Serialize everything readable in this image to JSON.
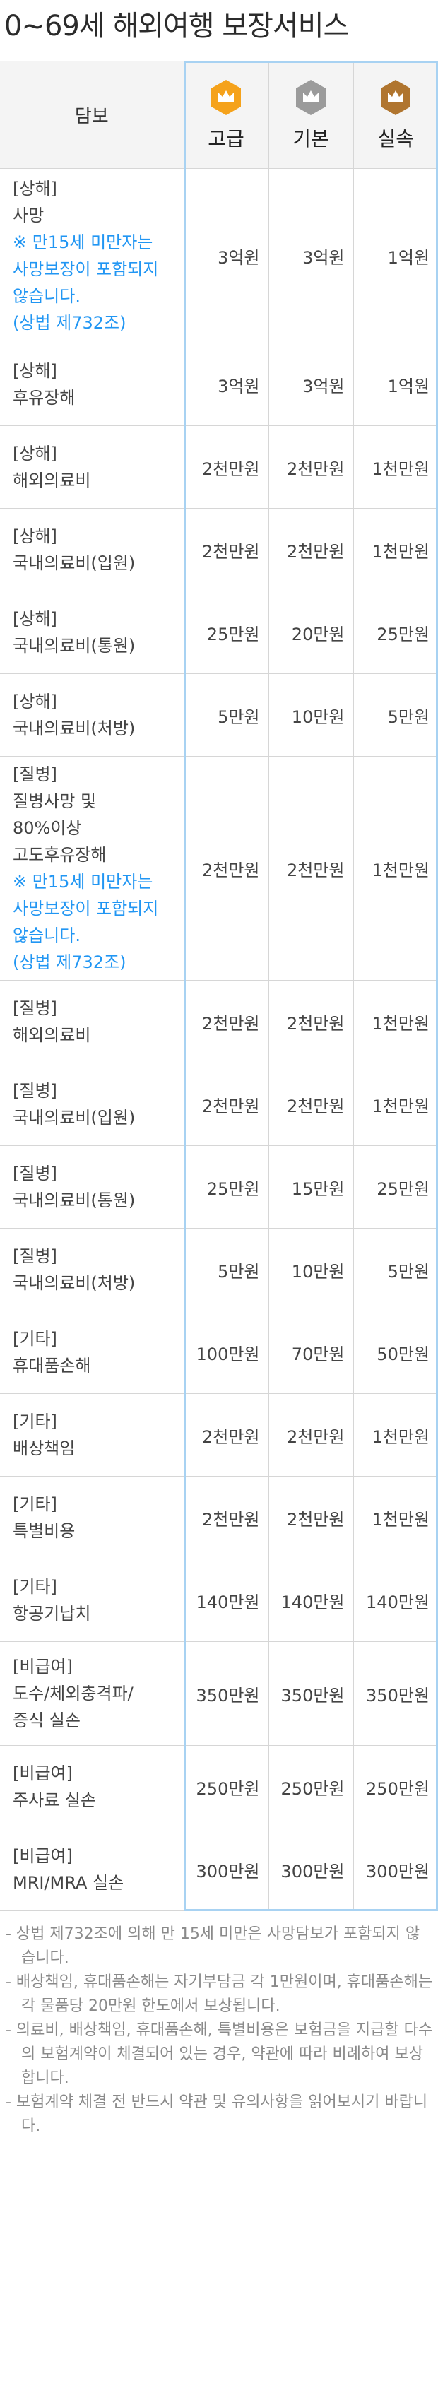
{
  "page_title": "0~69세 해외여행 보장서비스",
  "table": {
    "header_label": "담보",
    "plans": [
      {
        "name": "고급",
        "badge_icon": "crown-icon",
        "badge_color": "#f5a21b"
      },
      {
        "name": "기본",
        "badge_icon": "crown-icon",
        "badge_color": "#9b9b9b"
      },
      {
        "name": "실속",
        "badge_icon": "crown-icon",
        "badge_color": "#b0752f"
      }
    ],
    "rows": [
      {
        "category": "[상해]",
        "name_lines": [
          "사망"
        ],
        "note_lines": [
          "※ 만15세 미만자는",
          "사망보장이 포함되지",
          "않습니다.",
          "(상법 제732조)"
        ],
        "values": [
          "3억원",
          "3억원",
          "1억원"
        ]
      },
      {
        "category": "[상해]",
        "name_lines": [
          "후유장해"
        ],
        "note_lines": [],
        "values": [
          "3억원",
          "3억원",
          "1억원"
        ]
      },
      {
        "category": "[상해]",
        "name_lines": [
          "해외의료비"
        ],
        "note_lines": [],
        "values": [
          "2천만원",
          "2천만원",
          "1천만원"
        ]
      },
      {
        "category": "[상해]",
        "name_lines": [
          "국내의료비(입원)"
        ],
        "note_lines": [],
        "values": [
          "2천만원",
          "2천만원",
          "1천만원"
        ]
      },
      {
        "category": "[상해]",
        "name_lines": [
          "국내의료비(통원)"
        ],
        "note_lines": [],
        "values": [
          "25만원",
          "20만원",
          "25만원"
        ]
      },
      {
        "category": "[상해]",
        "name_lines": [
          "국내의료비(처방)"
        ],
        "note_lines": [],
        "values": [
          "5만원",
          "10만원",
          "5만원"
        ]
      },
      {
        "category": "[질병]",
        "name_lines": [
          "질병사망 및",
          "80%이상",
          "고도후유장해"
        ],
        "note_lines": [
          "※ 만15세 미만자는",
          "사망보장이 포함되지",
          "않습니다.",
          "(상법 제732조)"
        ],
        "values": [
          "2천만원",
          "2천만원",
          "1천만원"
        ]
      },
      {
        "category": "[질병]",
        "name_lines": [
          "해외의료비"
        ],
        "note_lines": [],
        "values": [
          "2천만원",
          "2천만원",
          "1천만원"
        ]
      },
      {
        "category": "[질병]",
        "name_lines": [
          "국내의료비(입원)"
        ],
        "note_lines": [],
        "values": [
          "2천만원",
          "2천만원",
          "1천만원"
        ]
      },
      {
        "category": "[질병]",
        "name_lines": [
          "국내의료비(통원)"
        ],
        "note_lines": [],
        "values": [
          "25만원",
          "15만원",
          "25만원"
        ]
      },
      {
        "category": "[질병]",
        "name_lines": [
          "국내의료비(처방)"
        ],
        "note_lines": [],
        "values": [
          "5만원",
          "10만원",
          "5만원"
        ]
      },
      {
        "category": "[기타]",
        "name_lines": [
          "휴대품손해"
        ],
        "note_lines": [],
        "values": [
          "100만원",
          "70만원",
          "50만원"
        ]
      },
      {
        "category": "[기타]",
        "name_lines": [
          "배상책임"
        ],
        "note_lines": [],
        "values": [
          "2천만원",
          "2천만원",
          "1천만원"
        ]
      },
      {
        "category": "[기타]",
        "name_lines": [
          "특별비용"
        ],
        "note_lines": [],
        "values": [
          "2천만원",
          "2천만원",
          "1천만원"
        ]
      },
      {
        "category": "[기타]",
        "name_lines": [
          "항공기납치"
        ],
        "note_lines": [],
        "values": [
          "140만원",
          "140만원",
          "140만원"
        ]
      },
      {
        "category": "[비급여]",
        "name_lines": [
          "도수/체외충격파/",
          "증식 실손"
        ],
        "note_lines": [],
        "values": [
          "350만원",
          "350만원",
          "350만원"
        ]
      },
      {
        "category": "[비급여]",
        "name_lines": [
          "주사료 실손"
        ],
        "note_lines": [],
        "values": [
          "250만원",
          "250만원",
          "250만원"
        ]
      },
      {
        "category": "[비급여]",
        "name_lines": [
          "MRI/MRA 실손"
        ],
        "note_lines": [],
        "values": [
          "300만원",
          "300만원",
          "300만원"
        ]
      }
    ]
  },
  "footnotes": [
    "- 상법 제732조에 의해 만 15세 미만은 사망담보가 포함되지 않습니다.",
    "- 배상책임, 휴대품손해는 자기부담금 각 1만원이며, 휴대품손해는 각 물품당 20만원 한도에서 보상됩니다.",
    "- 의료비, 배상책임, 휴대품손해, 특별비용은 보험금을 지급할 다수의 보험계약이 체결되어 있는 경우, 약관에 따라 비례하여 보상합니다.",
    "- 보험계약 체결 전 반드시 약관 및 유의사항을 읽어보시기 바랍니다."
  ]
}
